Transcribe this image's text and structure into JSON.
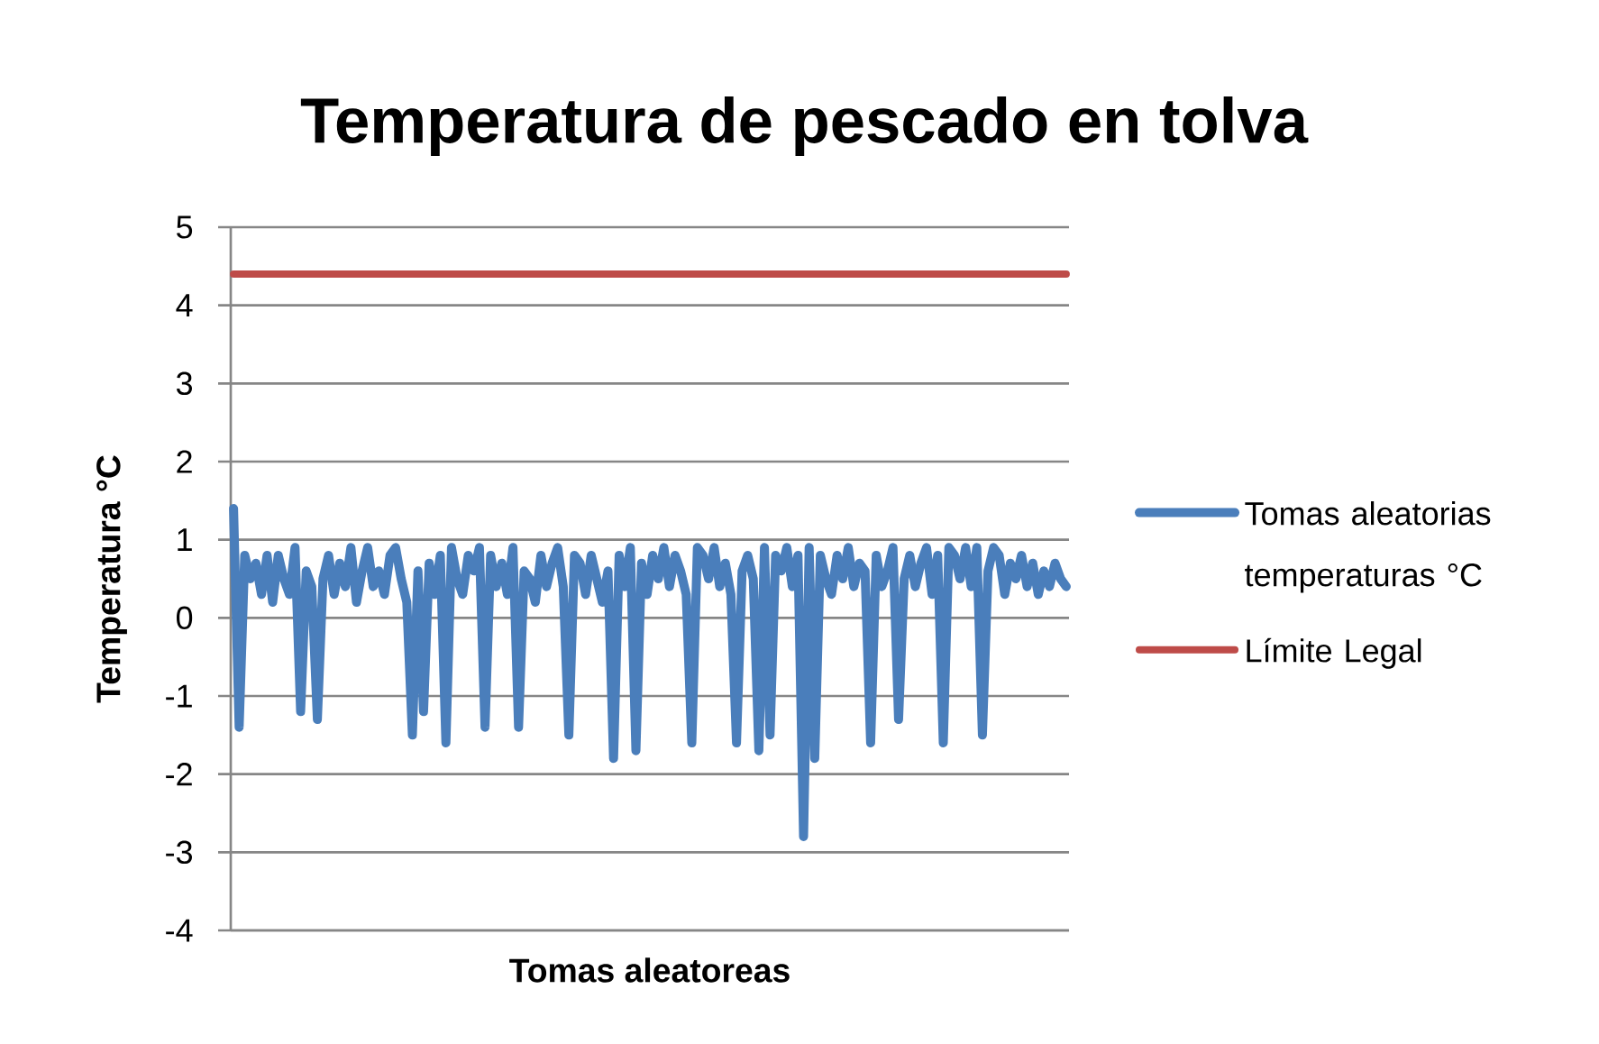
{
  "chart_data": {
    "type": "line",
    "title": "Temperatura de pescado en tolva",
    "xlabel": "Tomas aleatoreas",
    "ylabel": "Temperatura °C",
    "categories": [
      null,
      null,
      null,
      null,
      null,
      null,
      null,
      null,
      null,
      null,
      null,
      null,
      null,
      null,
      null,
      null,
      null,
      null,
      null,
      null,
      null,
      null,
      null,
      null,
      null,
      null,
      null,
      null,
      null,
      null,
      null,
      null,
      null,
      null,
      null,
      null,
      null,
      null,
      null,
      null,
      null,
      null,
      null,
      null,
      null,
      null,
      null,
      null,
      null,
      null,
      null,
      null,
      null,
      null,
      null,
      null,
      null,
      null,
      null,
      null,
      null,
      null,
      null,
      null,
      null,
      null,
      null,
      null,
      null,
      null,
      null,
      null,
      null,
      null,
      null,
      null,
      null,
      null,
      null,
      null,
      null,
      null,
      null,
      null,
      null,
      null,
      null,
      null,
      null,
      null,
      null,
      null,
      null,
      null,
      null,
      null,
      null,
      null,
      null,
      null,
      null,
      null,
      null,
      null,
      null,
      null,
      null,
      null,
      null,
      null,
      null,
      null,
      null,
      null,
      null,
      null,
      null,
      null,
      null,
      null,
      null,
      null,
      null,
      null,
      null,
      null,
      null,
      null,
      null,
      null,
      null,
      null,
      null,
      null,
      null,
      null,
      null,
      null,
      null,
      null,
      null,
      null,
      null,
      null,
      null,
      null,
      null,
      null,
      null,
      null
    ],
    "series": [
      {
        "name": "Tomas aleatorias temperaturas °C",
        "color": "#4a7ebb",
        "values": [
          1.4,
          -1.4,
          0.8,
          0.5,
          0.7,
          0.3,
          0.8,
          0.2,
          0.8,
          0.5,
          0.3,
          0.9,
          -1.2,
          0.6,
          0.4,
          -1.3,
          0.5,
          0.8,
          0.3,
          0.7,
          0.4,
          0.9,
          0.2,
          0.6,
          0.9,
          0.4,
          0.6,
          0.3,
          0.8,
          0.9,
          0.5,
          0.2,
          -1.5,
          0.6,
          -1.2,
          0.7,
          0.3,
          0.8,
          -1.6,
          0.9,
          0.5,
          0.3,
          0.8,
          0.6,
          0.9,
          -1.4,
          0.8,
          0.4,
          0.7,
          0.3,
          0.9,
          -1.4,
          0.6,
          0.5,
          0.2,
          0.8,
          0.4,
          0.7,
          0.9,
          0.4,
          -1.5,
          0.8,
          0.7,
          0.3,
          0.8,
          0.5,
          0.2,
          0.6,
          -1.8,
          0.8,
          0.4,
          0.9,
          -1.7,
          0.7,
          0.3,
          0.8,
          0.5,
          0.9,
          0.4,
          0.8,
          0.6,
          0.3,
          -1.6,
          0.9,
          0.8,
          0.5,
          0.9,
          0.4,
          0.7,
          0.3,
          -1.6,
          0.6,
          0.8,
          0.5,
          -1.7,
          0.9,
          -1.5,
          0.8,
          0.6,
          0.9,
          0.4,
          0.8,
          -2.8,
          0.9,
          -1.8,
          0.8,
          0.5,
          0.3,
          0.8,
          0.5,
          0.9,
          0.4,
          0.7,
          0.6,
          -1.6,
          0.8,
          0.4,
          0.6,
          0.9,
          -1.3,
          0.5,
          0.8,
          0.4,
          0.7,
          0.9,
          0.3,
          0.8,
          -1.6,
          0.9,
          0.8,
          0.5,
          0.9,
          0.4,
          0.9,
          -1.5,
          0.6,
          0.9,
          0.8,
          0.3,
          0.7,
          0.5,
          0.8,
          0.4,
          0.7,
          0.3,
          0.6,
          0.4,
          0.7,
          0.5,
          0.4
        ]
      },
      {
        "name": "Límite Legal",
        "color": "#be4b48",
        "values": [
          4.4,
          4.4,
          4.4,
          4.4,
          4.4,
          4.4,
          4.4,
          4.4,
          4.4,
          4.4,
          4.4,
          4.4,
          4.4,
          4.4,
          4.4,
          4.4,
          4.4,
          4.4,
          4.4,
          4.4,
          4.4,
          4.4,
          4.4,
          4.4,
          4.4,
          4.4,
          4.4,
          4.4,
          4.4,
          4.4,
          4.4,
          4.4,
          4.4,
          4.4,
          4.4,
          4.4,
          4.4,
          4.4,
          4.4,
          4.4,
          4.4,
          4.4,
          4.4,
          4.4,
          4.4,
          4.4,
          4.4,
          4.4,
          4.4,
          4.4,
          4.4,
          4.4,
          4.4,
          4.4,
          4.4,
          4.4,
          4.4,
          4.4,
          4.4,
          4.4,
          4.4,
          4.4,
          4.4,
          4.4,
          4.4,
          4.4,
          4.4,
          4.4,
          4.4,
          4.4,
          4.4,
          4.4,
          4.4,
          4.4,
          4.4,
          4.4,
          4.4,
          4.4,
          4.4,
          4.4,
          4.4,
          4.4,
          4.4,
          4.4,
          4.4,
          4.4,
          4.4,
          4.4,
          4.4,
          4.4,
          4.4,
          4.4,
          4.4,
          4.4,
          4.4,
          4.4,
          4.4,
          4.4,
          4.4,
          4.4,
          4.4,
          4.4,
          4.4,
          4.4,
          4.4,
          4.4,
          4.4,
          4.4,
          4.4,
          4.4,
          4.4,
          4.4,
          4.4,
          4.4,
          4.4,
          4.4,
          4.4,
          4.4,
          4.4,
          4.4,
          4.4,
          4.4,
          4.4,
          4.4,
          4.4,
          4.4,
          4.4,
          4.4,
          4.4,
          4.4,
          4.4,
          4.4,
          4.4,
          4.4,
          4.4,
          4.4,
          4.4,
          4.4,
          4.4,
          4.4,
          4.4,
          4.4,
          4.4,
          4.4,
          4.4,
          4.4,
          4.4,
          4.4,
          4.4,
          4.4
        ]
      }
    ],
    "ylim": [
      -4,
      5
    ],
    "yticks": [
      -4,
      -3,
      -2,
      -1,
      0,
      1,
      2,
      3,
      4,
      5
    ],
    "grid": "y",
    "legend": "right",
    "marker": "none",
    "line_style": "solid"
  }
}
